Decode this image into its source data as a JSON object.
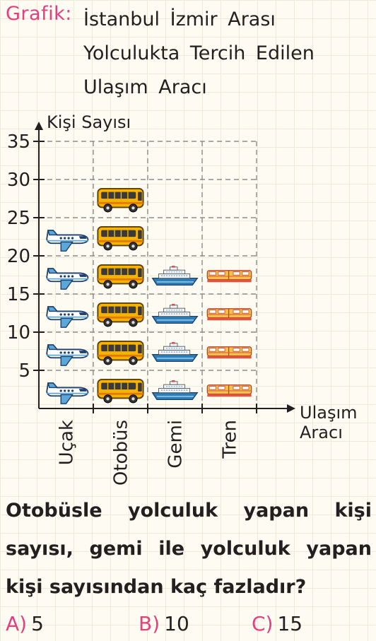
{
  "title": {
    "label": "Grafik:",
    "text": "İstanbul İzmir Arası Yolculukta Tercih Edilen Ulaşım Aracı"
  },
  "chart_data": {
    "type": "bar",
    "title": "İstanbul İzmir Arası Yolculukta Tercih Edilen Ulaşım Aracı",
    "ylabel": "Kişi Sayısı",
    "xlabel_lines": [
      "Ulaşım",
      "Aracı"
    ],
    "categories": [
      "Uçak",
      "Otobüs",
      "Gemi",
      "Tren"
    ],
    "values": [
      25,
      30,
      20,
      20
    ],
    "ylim": [
      0,
      35
    ],
    "yticks": [
      5,
      10,
      15,
      20,
      25,
      30,
      35
    ],
    "unit_per_icon": 5,
    "icons": [
      "airplane-icon",
      "bus-icon",
      "ship-icon",
      "train-icon"
    ],
    "grid": true,
    "legend": "none"
  },
  "question": {
    "text": "Otobüsle yolculuk yapan kişi sayısı, gemi ile yolculuk yapan kişi sayısından kaç fazladır?"
  },
  "options": [
    {
      "letter": "A)",
      "value": "5"
    },
    {
      "letter": "B)",
      "value": "10"
    },
    {
      "letter": "C)",
      "value": "15"
    }
  ],
  "colors": {
    "accent": "#e2407f",
    "bus": "#f6b400",
    "airplane": "#5aa7d8",
    "ship": "#2e7fb8",
    "train": "#f3c24a",
    "grid": "#8c8c8c"
  }
}
